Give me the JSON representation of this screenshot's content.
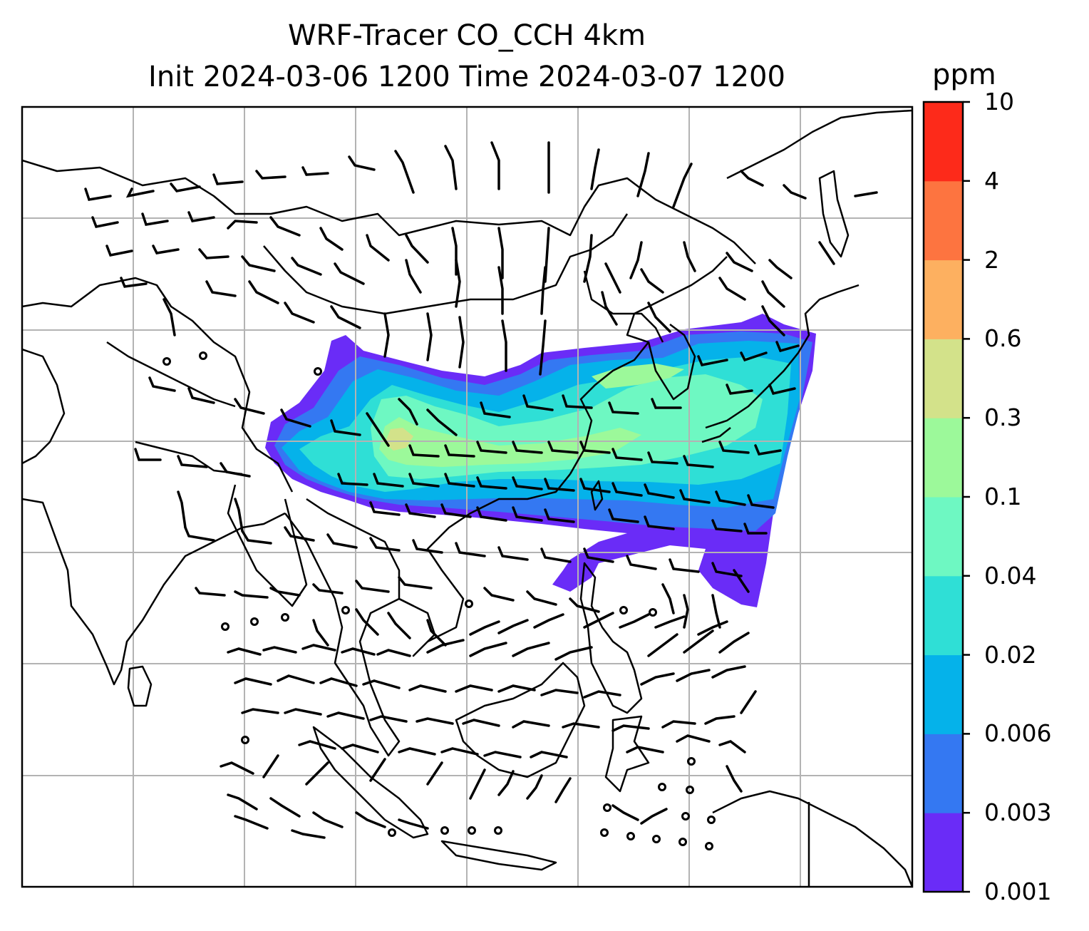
{
  "title": {
    "line1": "WRF-Tracer CO_CCH 4km",
    "line2": "Init 2024-03-06 1200 Time 2024-03-07 1200"
  },
  "map": {
    "projection": "regional map, East & Southeast Asia",
    "gridlines": true,
    "features": [
      "coastlines",
      "country borders",
      "wind barbs",
      "calm wind circles"
    ],
    "field": "CO tracer concentration plume over East China extending east over the Pacific"
  },
  "colorbar": {
    "unit": "ppm",
    "tick_labels": [
      "0.001",
      "0.003",
      "0.006",
      "0.02",
      "0.04",
      "0.1",
      "0.3",
      "0.6",
      "2",
      "4",
      "10"
    ],
    "levels": [
      0.001,
      0.003,
      0.006,
      0.02,
      0.04,
      0.1,
      0.3,
      0.6,
      2,
      4,
      10
    ],
    "colors": [
      "#6a2cf7",
      "#3478f2",
      "#05b2ea",
      "#2fdfd6",
      "#6ef8c2",
      "#9cf99a",
      "#d3e28a",
      "#fdb060",
      "#fd7440",
      "#fd2a1a"
    ]
  }
}
